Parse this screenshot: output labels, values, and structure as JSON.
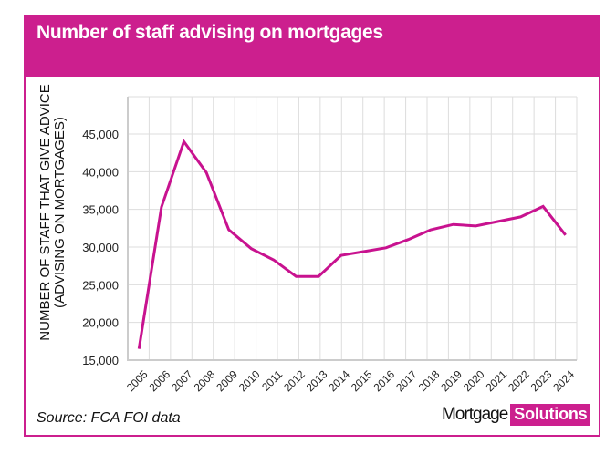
{
  "header": {
    "title": "Number of staff advising on mortgages"
  },
  "footer": {
    "source": "Source: FCA FOI data"
  },
  "logo": {
    "part1": "Mortgage",
    "part2": "Solutions"
  },
  "colors": {
    "brand": "#cc1f8e",
    "line": "#c8128f",
    "grid": "#dddddd"
  },
  "chart_data": {
    "type": "line",
    "title": "Number of staff advising on mortgages",
    "xlabel": "",
    "ylabel_lines": [
      "NUMBER OF STAFF THAT GIVE ADVICE",
      "(ADVISING ON MORTGAGES)"
    ],
    "ylim": [
      15000,
      47500
    ],
    "yticks": [
      15000,
      20000,
      25000,
      30000,
      35000,
      40000,
      45000
    ],
    "ytick_labels": [
      "15,000",
      "20,000",
      "25,000",
      "30,000",
      "35,000",
      "40,000",
      "45,000"
    ],
    "grid": true,
    "legend": "none",
    "categories": [
      "2005",
      "2006",
      "2007",
      "2008",
      "2009",
      "2010",
      "2011",
      "2012",
      "2013",
      "2014",
      "2015",
      "2016",
      "2017",
      "2018",
      "2019",
      "2020",
      "2021",
      "2022",
      "2023",
      "2024"
    ],
    "series": [
      {
        "name": "Staff advising on mortgages",
        "values": [
          16500,
          35300,
          44000,
          39900,
          32300,
          29800,
          28300,
          26100,
          26100,
          28900,
          29400,
          29900,
          31000,
          32300,
          33000,
          32800,
          33400,
          34000,
          35400,
          31600
        ]
      }
    ]
  }
}
